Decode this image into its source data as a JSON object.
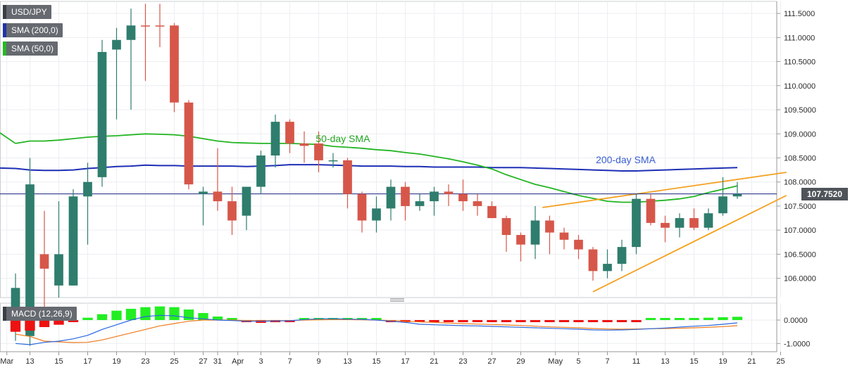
{
  "chart_data": {
    "type": "candlestick",
    "symbol": "USD/JPY",
    "last_price": "107.7520",
    "x_ticks": [
      "Mar",
      "13",
      "15",
      "17",
      "19",
      "23",
      "25",
      "27",
      "31",
      "Apr",
      "3",
      "7",
      "9",
      "13",
      "15",
      "17",
      "21",
      "23",
      "27",
      "29",
      "May",
      "5",
      "7",
      "11",
      "13",
      "15",
      "19",
      "21",
      "25"
    ],
    "y_ticks": [
      "111.5000",
      "111.0000",
      "110.5000",
      "110.0000",
      "109.5000",
      "109.0000",
      "108.5000",
      "108.0000",
      "107.5000",
      "107.0000",
      "106.5000",
      "106.0000"
    ],
    "ylim": [
      105.6,
      111.75
    ],
    "candles": [
      {
        "date": "Mar 11",
        "open": 105.0,
        "high": 106.1,
        "low": 104.7,
        "close": 105.8
      },
      {
        "date": "Mar 12",
        "open": 104.8,
        "high": 108.5,
        "low": 104.6,
        "close": 107.95
      },
      {
        "date": "Mar 13",
        "open": 106.5,
        "high": 107.4,
        "low": 105.4,
        "close": 106.2
      },
      {
        "date": "Mar 16",
        "open": 105.85,
        "high": 107.6,
        "low": 105.6,
        "close": 106.5
      },
      {
        "date": "Mar 17",
        "open": 105.85,
        "high": 107.85,
        "low": 105.85,
        "close": 107.7
      },
      {
        "date": "Mar 18",
        "open": 107.7,
        "high": 108.4,
        "low": 106.7,
        "close": 108.0
      },
      {
        "date": "Mar 19",
        "open": 108.1,
        "high": 110.95,
        "low": 107.9,
        "close": 110.7
      },
      {
        "date": "Mar 20",
        "open": 110.75,
        "high": 111.2,
        "low": 109.3,
        "close": 110.95
      },
      {
        "date": "Mar 23",
        "open": 110.95,
        "high": 111.6,
        "low": 109.5,
        "close": 111.25
      },
      {
        "date": "Mar 24",
        "open": 111.25,
        "high": 111.7,
        "low": 110.1,
        "close": 111.23
      },
      {
        "date": "Mar 25",
        "open": 111.25,
        "high": 111.7,
        "low": 110.8,
        "close": 111.23
      },
      {
        "date": "Mar 26",
        "open": 111.25,
        "high": 111.3,
        "low": 109.45,
        "close": 109.65
      },
      {
        "date": "Mar 27",
        "open": 109.65,
        "high": 109.7,
        "low": 107.85,
        "close": 107.95
      },
      {
        "date": "Mar 30",
        "open": 107.75,
        "high": 107.9,
        "low": 107.1,
        "close": 107.8
      },
      {
        "date": "Mar 31",
        "open": 107.8,
        "high": 108.7,
        "low": 107.4,
        "close": 107.6
      },
      {
        "date": "Apr 1",
        "open": 107.6,
        "high": 107.9,
        "low": 106.9,
        "close": 107.2
      },
      {
        "date": "Apr 2",
        "open": 107.3,
        "high": 107.9,
        "low": 107.0,
        "close": 107.9
      },
      {
        "date": "Apr 3",
        "open": 107.9,
        "high": 108.65,
        "low": 107.75,
        "close": 108.55
      },
      {
        "date": "Apr 6",
        "open": 108.55,
        "high": 109.4,
        "low": 108.3,
        "close": 109.25
      },
      {
        "date": "Apr 7",
        "open": 109.25,
        "high": 109.3,
        "low": 108.6,
        "close": 108.8
      },
      {
        "date": "Apr 8",
        "open": 108.8,
        "high": 109.05,
        "low": 108.4,
        "close": 108.75
      },
      {
        "date": "Apr 9",
        "open": 108.8,
        "high": 109.05,
        "low": 108.2,
        "close": 108.45
      },
      {
        "date": "Apr 10",
        "open": 108.45,
        "high": 108.6,
        "low": 108.3,
        "close": 108.45
      },
      {
        "date": "Apr 13",
        "open": 108.45,
        "high": 108.5,
        "low": 107.45,
        "close": 107.75
      },
      {
        "date": "Apr 14",
        "open": 107.75,
        "high": 107.8,
        "low": 106.95,
        "close": 107.2
      },
      {
        "date": "Apr 15",
        "open": 107.2,
        "high": 107.7,
        "low": 106.95,
        "close": 107.45
      },
      {
        "date": "Apr 16",
        "open": 107.45,
        "high": 108.05,
        "low": 107.2,
        "close": 107.9
      },
      {
        "date": "Apr 17",
        "open": 107.9,
        "high": 108.0,
        "low": 107.2,
        "close": 107.5
      },
      {
        "date": "Apr 20",
        "open": 107.5,
        "high": 107.75,
        "low": 107.4,
        "close": 107.6
      },
      {
        "date": "Apr 21",
        "open": 107.6,
        "high": 107.9,
        "low": 107.3,
        "close": 107.8
      },
      {
        "date": "Apr 22",
        "open": 107.8,
        "high": 107.95,
        "low": 107.5,
        "close": 107.75
      },
      {
        "date": "Apr 23",
        "open": 107.75,
        "high": 108.05,
        "low": 107.4,
        "close": 107.6
      },
      {
        "date": "Apr 24",
        "open": 107.6,
        "high": 107.75,
        "low": 107.3,
        "close": 107.5
      },
      {
        "date": "Apr 27",
        "open": 107.5,
        "high": 107.6,
        "low": 107.25,
        "close": 107.25
      },
      {
        "date": "Apr 28",
        "open": 107.25,
        "high": 107.3,
        "low": 106.55,
        "close": 106.9
      },
      {
        "date": "Apr 29",
        "open": 106.9,
        "high": 106.95,
        "low": 106.35,
        "close": 106.7
      },
      {
        "date": "Apr 30",
        "open": 106.7,
        "high": 107.5,
        "low": 106.4,
        "close": 107.2
      },
      {
        "date": "May 1",
        "open": 107.2,
        "high": 107.3,
        "low": 106.5,
        "close": 106.95
      },
      {
        "date": "May 4",
        "open": 106.95,
        "high": 107.05,
        "low": 106.6,
        "close": 106.8
      },
      {
        "date": "May 5",
        "open": 106.8,
        "high": 106.9,
        "low": 106.4,
        "close": 106.6
      },
      {
        "date": "May 6",
        "open": 106.6,
        "high": 106.65,
        "low": 105.95,
        "close": 106.15
      },
      {
        "date": "May 7",
        "open": 106.15,
        "high": 106.6,
        "low": 106.0,
        "close": 106.3
      },
      {
        "date": "May 8",
        "open": 106.3,
        "high": 106.8,
        "low": 106.15,
        "close": 106.65
      },
      {
        "date": "May 11",
        "open": 106.65,
        "high": 107.75,
        "low": 106.5,
        "close": 107.65
      },
      {
        "date": "May 12",
        "open": 107.65,
        "high": 107.75,
        "low": 107.1,
        "close": 107.15
      },
      {
        "date": "May 13",
        "open": 107.15,
        "high": 107.3,
        "low": 106.75,
        "close": 107.05
      },
      {
        "date": "May 14",
        "open": 107.05,
        "high": 107.35,
        "low": 106.85,
        "close": 107.25
      },
      {
        "date": "May 15",
        "open": 107.25,
        "high": 107.45,
        "low": 107.0,
        "close": 107.05
      },
      {
        "date": "May 18",
        "open": 107.05,
        "high": 107.45,
        "low": 107.0,
        "close": 107.35
      },
      {
        "date": "May 19",
        "open": 107.35,
        "high": 108.1,
        "low": 107.3,
        "close": 107.7
      },
      {
        "date": "May 20",
        "open": 107.7,
        "high": 108.0,
        "low": 107.65,
        "close": 107.75
      }
    ],
    "sma200": [
      108.28,
      108.25,
      108.24,
      108.24,
      108.25,
      108.28,
      108.3,
      108.32,
      108.33,
      108.35,
      108.34,
      108.34,
      108.33,
      108.33,
      108.33,
      108.33,
      108.32,
      108.33,
      108.34,
      108.36,
      108.36,
      108.36,
      108.35,
      108.34,
      108.33,
      108.33,
      108.33,
      108.32,
      108.32,
      108.31,
      108.31,
      108.31,
      108.31,
      108.3,
      108.3,
      108.3,
      108.29,
      108.28,
      108.27,
      108.26,
      108.25,
      108.24,
      108.23,
      108.23,
      108.24,
      108.25,
      108.26,
      108.27,
      108.28,
      108.29,
      108.3
    ],
    "sma50": [
      108.8,
      108.85,
      108.85,
      108.87,
      108.9,
      108.93,
      108.95,
      108.96,
      108.98,
      109.0,
      108.99,
      108.98,
      108.95,
      108.9,
      108.85,
      108.82,
      108.81,
      108.8,
      108.8,
      108.8,
      108.79,
      108.78,
      108.74,
      108.72,
      108.7,
      108.67,
      108.65,
      108.61,
      108.58,
      108.53,
      108.48,
      108.42,
      108.35,
      108.27,
      108.15,
      108.05,
      107.95,
      107.88,
      107.8,
      107.72,
      107.66,
      107.6,
      107.58,
      107.58,
      107.6,
      107.62,
      107.65,
      107.7,
      107.78,
      107.85,
      107.92
    ],
    "annotations": [
      {
        "text": "50-day SMA",
        "color": "#1fa51f"
      },
      {
        "text": "200-day SMA",
        "color": "#3a5fd0"
      }
    ],
    "macd_panel": {
      "label": "MACD (12,26,9)",
      "y_ticks": [
        "0.0000",
        "-1.0000"
      ],
      "ylim": [
        -1.35,
        0.72
      ],
      "histogram": [
        -0.5,
        -0.45,
        -0.3,
        -0.2,
        -0.05,
        0.1,
        0.25,
        0.4,
        0.48,
        0.55,
        0.58,
        0.55,
        0.45,
        0.3,
        0.15,
        0.05,
        -0.05,
        -0.12,
        -0.08,
        -0.03,
        0.02,
        0.05,
        0.06,
        0.06,
        0.05,
        0.03,
        -0.02,
        -0.05,
        -0.07,
        -0.07,
        -0.08,
        -0.08,
        -0.08,
        -0.08,
        -0.07,
        -0.06,
        -0.05,
        -0.05,
        -0.04,
        -0.04,
        -0.03,
        -0.03,
        -0.02,
        -0.02,
        0.01,
        0.04,
        0.06,
        0.08,
        0.1,
        0.12,
        0.14
      ],
      "macd_line": [
        -1.0,
        -1.05,
        -0.95,
        -0.9,
        -0.8,
        -0.65,
        -0.4,
        -0.2,
        0.0,
        0.15,
        0.2,
        0.18,
        0.1,
        0.05,
        0.0,
        -0.02,
        -0.05,
        -0.05,
        -0.04,
        -0.03,
        0.02,
        0.05,
        0.06,
        0.04,
        0.03,
        0.0,
        -0.05,
        -0.1,
        -0.18,
        -0.2,
        -0.22,
        -0.24,
        -0.25,
        -0.27,
        -0.29,
        -0.31,
        -0.33,
        -0.35,
        -0.37,
        -0.39,
        -0.42,
        -0.43,
        -0.42,
        -0.4,
        -0.37,
        -0.34,
        -0.3,
        -0.26,
        -0.23,
        -0.18,
        -0.12
      ],
      "signal_line": [
        -0.6,
        -0.7,
        -0.9,
        -0.93,
        -0.96,
        -0.95,
        -0.85,
        -0.7,
        -0.55,
        -0.4,
        -0.25,
        -0.15,
        -0.05,
        0.0,
        0.0,
        0.0,
        -0.02,
        -0.03,
        -0.03,
        -0.02,
        0.0,
        0.01,
        0.02,
        0.02,
        0.01,
        0.0,
        -0.02,
        -0.05,
        -0.08,
        -0.1,
        -0.13,
        -0.15,
        -0.17,
        -0.19,
        -0.21,
        -0.23,
        -0.26,
        -0.29,
        -0.31,
        -0.33,
        -0.36,
        -0.38,
        -0.39,
        -0.38,
        -0.37,
        -0.36,
        -0.35,
        -0.33,
        -0.31,
        -0.28,
        -0.24
      ]
    },
    "grid": true
  },
  "legend": {
    "symbol": "USD/JPY",
    "sma200_label": "SMA (200,0)",
    "sma50_label": "SMA (50,0)",
    "sma200_color": "#2233aa",
    "sma50_color": "#22bb22"
  },
  "colors": {
    "bull": "#2f7d6d",
    "bear": "#d6574a",
    "sma200": "#1e2fb5",
    "sma50": "#22b522",
    "trendline": "#f4a020",
    "macd_line": "#2a66e0",
    "signal_line": "#f07a1a",
    "hist_pos": "#22ee22",
    "hist_neg": "#ee1111",
    "current_price_line": "#1a237e"
  }
}
